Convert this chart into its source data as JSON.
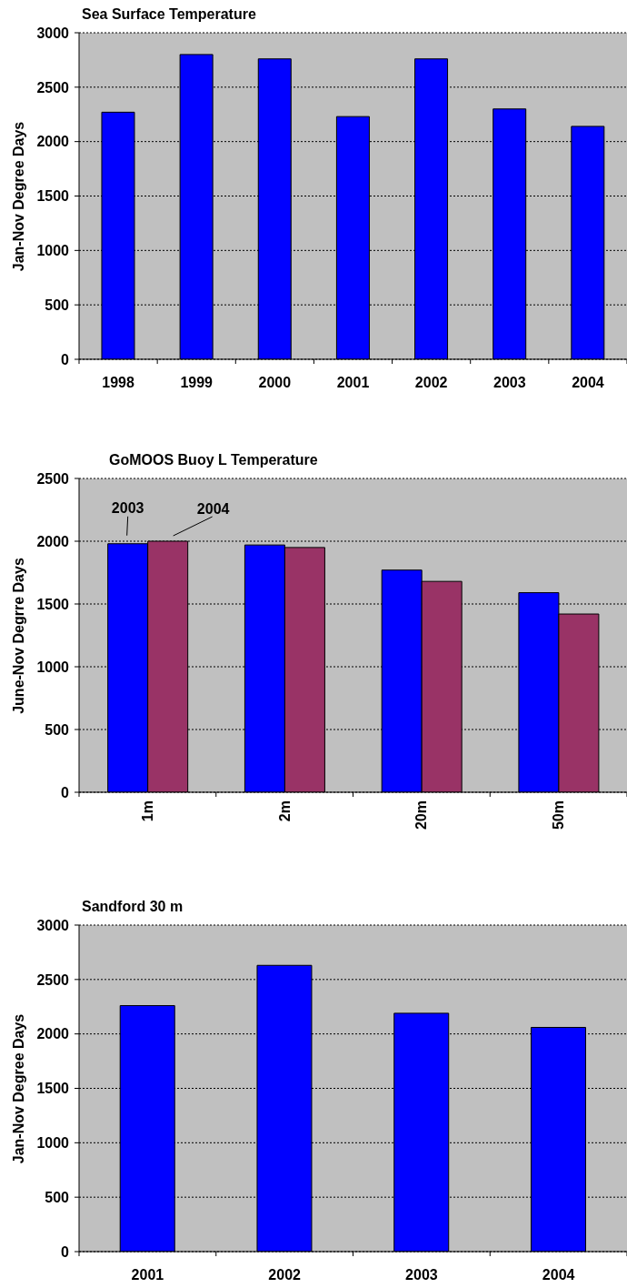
{
  "chart_data": [
    {
      "type": "bar",
      "title": "Sea Surface Temperature",
      "ylabel": "Jan-Nov Degree Days",
      "categories": [
        "1998",
        "1999",
        "2000",
        "2001",
        "2002",
        "2003",
        "2004"
      ],
      "values": [
        2270,
        2800,
        2760,
        2230,
        2760,
        2300,
        2140
      ],
      "color": "#0000ff",
      "ylim": [
        0,
        3000
      ],
      "yticks": [
        0,
        500,
        1000,
        1500,
        2000,
        2500,
        3000
      ],
      "grid": "y"
    },
    {
      "type": "bar",
      "title": "GoMOOS Buoy L Temperature",
      "ylabel": "June-Nov Degrre Days",
      "categories": [
        "1m",
        "2m",
        "20m",
        "50m"
      ],
      "series": [
        {
          "name": "2003",
          "color": "#0000ff",
          "values": [
            1980,
            1970,
            1770,
            1590
          ]
        },
        {
          "name": "2004",
          "color": "#993366",
          "values": [
            2000,
            1950,
            1680,
            1420
          ]
        }
      ],
      "ylim": [
        0,
        2500
      ],
      "yticks": [
        0,
        500,
        1000,
        1500,
        2000,
        2500
      ],
      "grid": "y"
    },
    {
      "type": "bar",
      "title": "Sandford 30 m",
      "ylabel": "Jan-Nov Degree Days",
      "categories": [
        "2001",
        "2002",
        "2003",
        "2004"
      ],
      "values": [
        2260,
        2630,
        2190,
        2060
      ],
      "color": "#0000ff",
      "ylim": [
        0,
        3000
      ],
      "yticks": [
        0,
        500,
        1000,
        1500,
        2000,
        2500,
        3000
      ],
      "grid": "y"
    }
  ]
}
